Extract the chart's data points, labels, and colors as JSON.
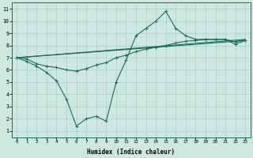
{
  "xlabel": "Humidex (Indice chaleur)",
  "background_color": "#cce8e0",
  "grid_color": "#aacfc8",
  "line_color": "#1a6b5a",
  "xlim": [
    -0.5,
    23.5
  ],
  "ylim": [
    0.5,
    11.5
  ],
  "xticks": [
    0,
    1,
    2,
    3,
    4,
    5,
    6,
    7,
    8,
    9,
    10,
    11,
    12,
    13,
    14,
    15,
    16,
    17,
    18,
    19,
    20,
    21,
    22,
    23
  ],
  "yticks": [
    1,
    2,
    3,
    4,
    5,
    6,
    7,
    8,
    9,
    10,
    11
  ],
  "series1_x": [
    0,
    1,
    2,
    3,
    4,
    5,
    6,
    7,
    8,
    9,
    10,
    11,
    12,
    13,
    14,
    15,
    16,
    17,
    18,
    19,
    20,
    21,
    22,
    23
  ],
  "series1_y": [
    7.0,
    6.7,
    6.3,
    5.8,
    5.1,
    3.6,
    1.4,
    2.0,
    2.2,
    1.8,
    5.0,
    6.8,
    8.8,
    9.4,
    10.0,
    10.8,
    9.4,
    8.8,
    8.5,
    8.5,
    8.5,
    8.5,
    8.1,
    8.4
  ],
  "series2_x": [
    0,
    1,
    2,
    3,
    4,
    5,
    6,
    7,
    8,
    9,
    10,
    11,
    12,
    13,
    14,
    15,
    16,
    17,
    18,
    19,
    20,
    21,
    22,
    23
  ],
  "series2_y": [
    7.0,
    6.9,
    6.5,
    6.3,
    6.2,
    6.0,
    5.9,
    6.1,
    6.4,
    6.6,
    7.0,
    7.2,
    7.5,
    7.7,
    7.85,
    8.0,
    8.2,
    8.35,
    8.4,
    8.5,
    8.5,
    8.5,
    8.3,
    8.45
  ],
  "series3_x": [
    0,
    23
  ],
  "series3_y": [
    7.0,
    8.4
  ],
  "series4_x": [
    0,
    23
  ],
  "series4_y": [
    7.0,
    8.5
  ],
  "figwidth": 3.2,
  "figheight": 2.0,
  "dpi": 100
}
